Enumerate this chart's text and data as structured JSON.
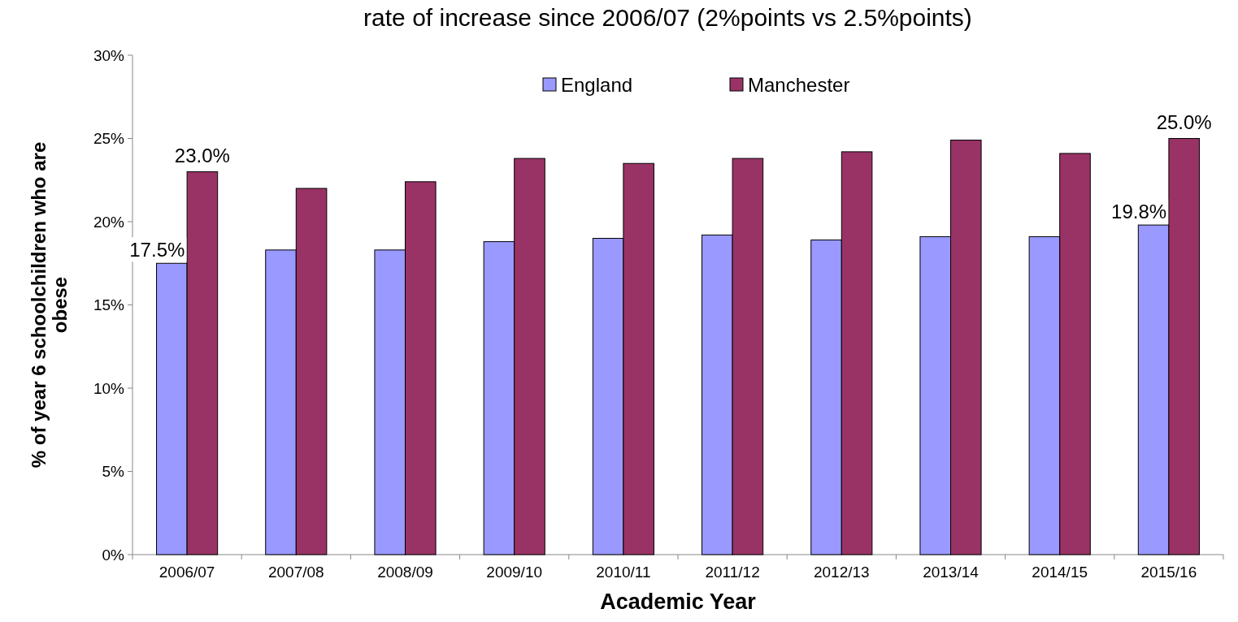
{
  "chart_data": {
    "type": "bar",
    "title": "rate of increase since 2006/07 (2%points vs 2.5%points)",
    "xlabel": "Academic Year",
    "ylabel": "% of year 6  schoolchildren who are\nobese",
    "categories": [
      "2006/07",
      "2007/08",
      "2008/09",
      "2009/10",
      "2010/11",
      "2011/12",
      "2012/13",
      "2013/14",
      "2014/15",
      "2015/16"
    ],
    "series": [
      {
        "name": "England",
        "color": "#9999ff",
        "values": [
          17.5,
          18.3,
          18.3,
          18.8,
          19.0,
          19.2,
          18.9,
          19.1,
          19.1,
          19.8
        ],
        "value_labels": [
          "17.5%",
          null,
          null,
          null,
          null,
          null,
          null,
          null,
          null,
          "19.8%"
        ]
      },
      {
        "name": "Manchester",
        "color": "#993366",
        "values": [
          23.0,
          22.0,
          22.4,
          23.8,
          23.5,
          23.8,
          24.2,
          24.9,
          24.1,
          25.0
        ],
        "value_labels": [
          "23.0%",
          null,
          null,
          null,
          null,
          null,
          null,
          null,
          null,
          "25.0%"
        ]
      }
    ],
    "ylim": [
      0,
      30
    ],
    "yticks": [
      {
        "value": 0,
        "label": "0%"
      },
      {
        "value": 5,
        "label": "5%"
      },
      {
        "value": 10,
        "label": "10%"
      },
      {
        "value": 15,
        "label": "15%"
      },
      {
        "value": 20,
        "label": "20%"
      },
      {
        "value": 25,
        "label": "25%"
      },
      {
        "value": 30,
        "label": "30%"
      }
    ],
    "grid": false,
    "legend": "top"
  }
}
